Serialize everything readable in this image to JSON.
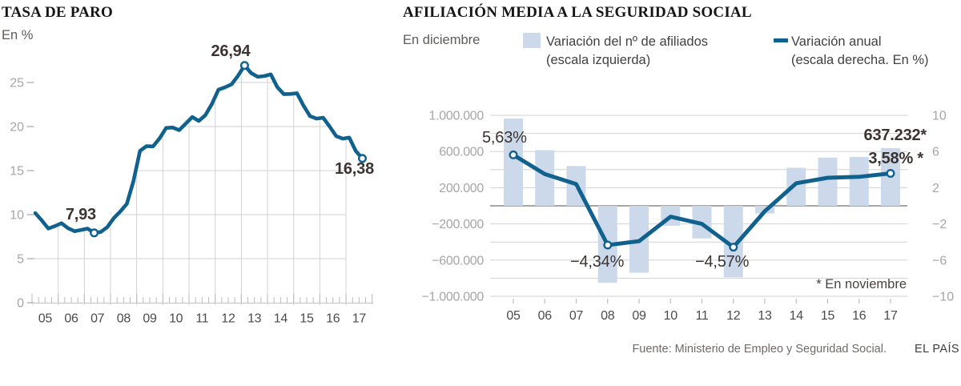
{
  "page": {
    "footer_source": "Fuente: Ministerio de Empleo y Seguridad Social.",
    "footer_brand": "EL PAÍS"
  },
  "colors": {
    "line_blue": "#11618e",
    "bar_fill": "#ccd9ea",
    "grid": "#d2d2d2",
    "zero_line": "#9a9a9a",
    "axis_line": "#c8c8c8",
    "tick": "#bdbdbd",
    "y_label": "#a6a6a6",
    "x_label": "#4b4b4b",
    "annotation": "#3b3431"
  },
  "chart_data": [
    {
      "type": "line",
      "title": "TASA DE PARO",
      "subtitle": "En %",
      "x_unit": "quarter",
      "x_start": "2005Q1",
      "x_end": "2017Q3",
      "categories": [
        "05",
        "06",
        "07",
        "08",
        "09",
        "10",
        "11",
        "12",
        "13",
        "14",
        "15",
        "16",
        "17"
      ],
      "yticks": [
        0,
        5,
        10,
        15,
        20,
        25
      ],
      "ylim": [
        0,
        27.5
      ],
      "grid": "clipped-under-curve",
      "series": [
        {
          "name": "Tasa de paro",
          "values": [
            10.17,
            9.33,
            8.42,
            8.7,
            9.03,
            8.46,
            8.12,
            8.26,
            8.42,
            7.93,
            8.03,
            8.57,
            9.6,
            10.36,
            11.23,
            13.79,
            17.24,
            17.77,
            17.75,
            18.66,
            19.84,
            19.89,
            19.59,
            20.33,
            21.08,
            20.64,
            21.28,
            22.56,
            24.19,
            24.45,
            24.79,
            25.77,
            26.94,
            26.06,
            25.65,
            25.73,
            25.93,
            24.47,
            23.67,
            23.7,
            23.78,
            22.37,
            21.18,
            20.9,
            21.0,
            20.0,
            18.91,
            18.63,
            18.75,
            17.22,
            16.38
          ]
        }
      ],
      "marker_indices": [
        9,
        32,
        50
      ],
      "annotations": [
        {
          "label": "7,93",
          "point": "2007Q2"
        },
        {
          "label": "26,94",
          "point": "2013Q1"
        },
        {
          "label": "16,38",
          "point": "2017Q3"
        }
      ]
    },
    {
      "type": "combo",
      "title": "AFILIACIÓN MEDIA A LA SEGURIDAD SOCIAL",
      "subtitle": "En diciembre",
      "categories": [
        "05",
        "06",
        "07",
        "08",
        "09",
        "10",
        "11",
        "12",
        "13",
        "14",
        "15",
        "16",
        "17"
      ],
      "left_axis_ticks": [
        "1.000.000",
        "600.000",
        "200.000",
        "−200.000",
        "−600.000",
        "−1.000.000"
      ],
      "right_axis_ticks": [
        "10",
        "6",
        "2",
        "−2",
        "−6",
        "−10"
      ],
      "left_ylim": [
        -1000000,
        1000000
      ],
      "right_ylim": [
        -10,
        10
      ],
      "grid": "horizontal-only",
      "series": [
        {
          "name": "Variación del nº de afiliados",
          "sublabel": "(escala izquierda)",
          "type": "bar",
          "axis": "left",
          "values": [
            965000,
            615000,
            440000,
            -850000,
            -740000,
            -220000,
            -360000,
            -790000,
            -85000,
            420000,
            533000,
            540000,
            637232
          ]
        },
        {
          "name": "Variación anual",
          "sublabel": "(escala derecha. En %)",
          "type": "line",
          "axis": "right",
          "values": [
            5.63,
            3.5,
            2.4,
            -4.34,
            -3.9,
            -1.2,
            -2.0,
            -4.57,
            -0.6,
            2.5,
            3.1,
            3.2,
            3.58
          ]
        }
      ],
      "marker_indices": [
        0,
        3,
        7,
        12
      ],
      "annotations": [
        {
          "label": "5,63%",
          "point": "05"
        },
        {
          "label": "−4,34%",
          "point": "08"
        },
        {
          "label": "−4,57%",
          "point": "12"
        },
        {
          "label": "637.232*",
          "point": "17"
        },
        {
          "label": "3,58% *",
          "point": "17"
        }
      ],
      "note": "* En noviembre"
    }
  ]
}
